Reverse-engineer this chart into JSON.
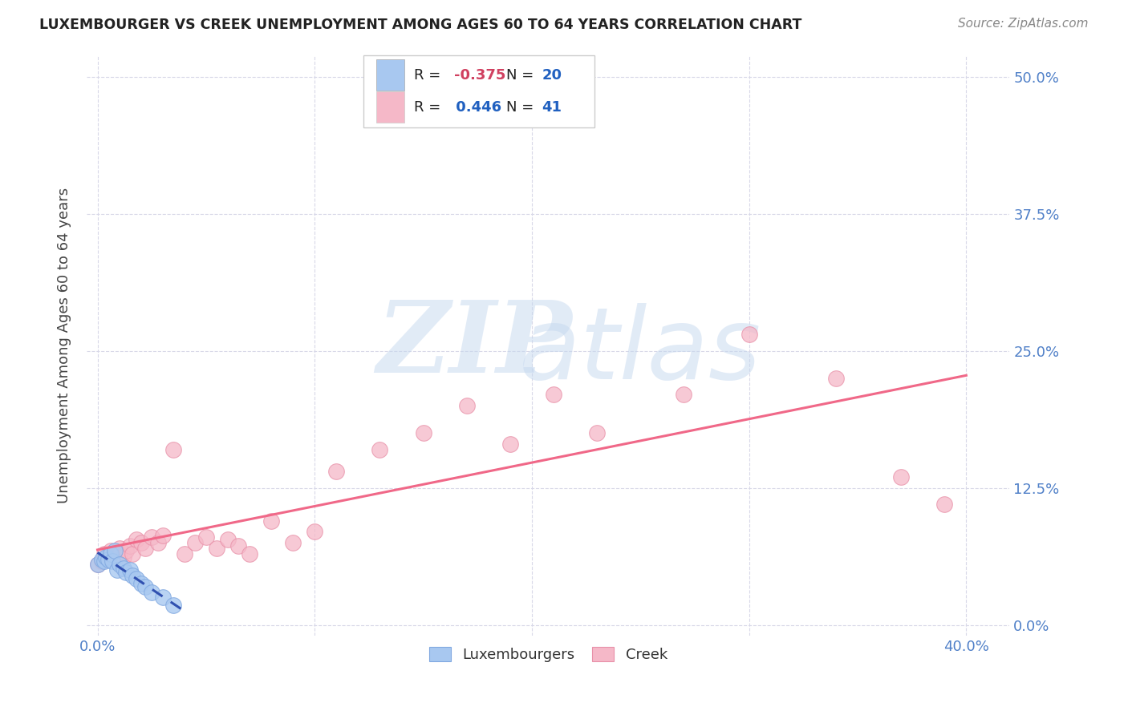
{
  "title": "LUXEMBOURGER VS CREEK UNEMPLOYMENT AMONG AGES 60 TO 64 YEARS CORRELATION CHART",
  "source": "Source: ZipAtlas.com",
  "xlabel_ticks": [
    "0.0%",
    "",
    "",
    "",
    "40.0%"
  ],
  "xtick_vals": [
    0.0,
    0.1,
    0.2,
    0.3,
    0.4
  ],
  "ytick_vals": [
    0.0,
    0.125,
    0.25,
    0.375,
    0.5
  ],
  "ylabel_ticks_right": [
    "0.0%",
    "12.5%",
    "25.0%",
    "37.5%",
    "50.0%"
  ],
  "xlim": [
    -0.005,
    0.42
  ],
  "ylim": [
    -0.01,
    0.52
  ],
  "ylabel": "Unemployment Among Ages 60 to 64 years",
  "lux_color": "#a8c8f0",
  "creek_color": "#f5b8c8",
  "lux_edge_color": "#80a8e0",
  "creek_edge_color": "#e890a8",
  "lux_line_color": "#3050b0",
  "creek_line_color": "#f06888",
  "lux_R": -0.375,
  "lux_N": 20,
  "creek_R": 0.446,
  "creek_N": 41,
  "luxembourger_x": [
    0.0,
    0.002,
    0.003,
    0.004,
    0.005,
    0.006,
    0.007,
    0.008,
    0.009,
    0.01,
    0.012,
    0.013,
    0.015,
    0.016,
    0.018,
    0.02,
    0.022,
    0.025,
    0.03,
    0.035
  ],
  "luxembourger_y": [
    0.055,
    0.06,
    0.058,
    0.062,
    0.06,
    0.065,
    0.058,
    0.068,
    0.05,
    0.055,
    0.052,
    0.048,
    0.05,
    0.045,
    0.042,
    0.038,
    0.035,
    0.03,
    0.025,
    0.018
  ],
  "creek_x": [
    0.0,
    0.002,
    0.003,
    0.005,
    0.006,
    0.008,
    0.01,
    0.01,
    0.012,
    0.013,
    0.015,
    0.016,
    0.018,
    0.02,
    0.022,
    0.025,
    0.028,
    0.03,
    0.035,
    0.04,
    0.045,
    0.05,
    0.055,
    0.06,
    0.065,
    0.07,
    0.08,
    0.09,
    0.1,
    0.11,
    0.13,
    0.15,
    0.17,
    0.19,
    0.21,
    0.23,
    0.27,
    0.3,
    0.34,
    0.37,
    0.39
  ],
  "creek_y": [
    0.055,
    0.058,
    0.065,
    0.062,
    0.068,
    0.06,
    0.065,
    0.07,
    0.062,
    0.068,
    0.072,
    0.065,
    0.078,
    0.075,
    0.07,
    0.08,
    0.075,
    0.082,
    0.16,
    0.065,
    0.075,
    0.08,
    0.07,
    0.078,
    0.072,
    0.065,
    0.095,
    0.075,
    0.085,
    0.14,
    0.16,
    0.175,
    0.2,
    0.165,
    0.21,
    0.175,
    0.21,
    0.265,
    0.225,
    0.135,
    0.11
  ],
  "watermark_zip": "ZIP",
  "watermark_atlas": "atlas",
  "background_color": "#ffffff",
  "grid_color": "#d8d8e8",
  "lux_line_x": [
    0.0,
    0.04
  ],
  "creek_line_x": [
    0.0,
    0.4
  ]
}
